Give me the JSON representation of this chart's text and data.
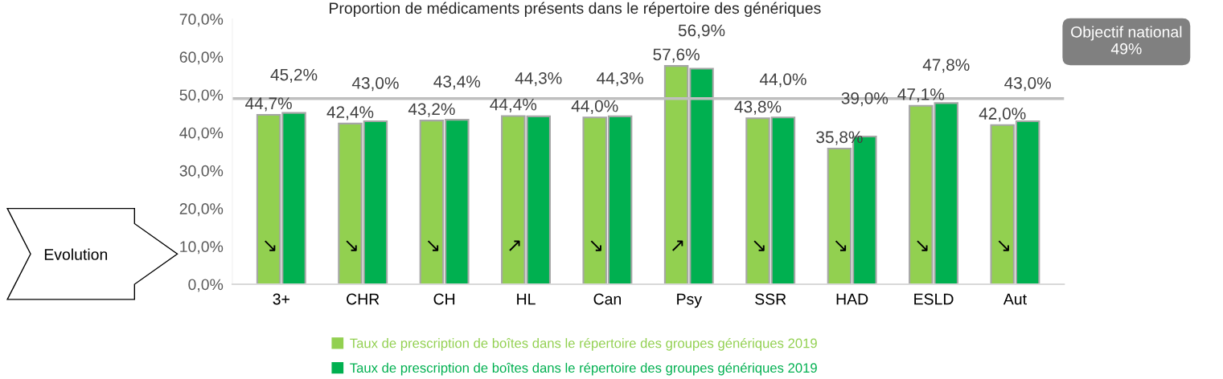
{
  "chart_data": {
    "type": "bar",
    "title": "Proportion de médicaments présents dans le répertoire des génériques",
    "categories": [
      "3+",
      "CHR",
      "CH",
      "HL",
      "Can",
      "Psy",
      "SSR",
      "HAD",
      "ESLD",
      "Aut"
    ],
    "series": [
      {
        "name": "Taux de prescription de boîtes dans le répertoire des groupes génériques 2019",
        "color": "#92d050",
        "values": [
          44.7,
          42.4,
          43.2,
          44.4,
          44.0,
          57.6,
          43.8,
          35.8,
          47.1,
          42.0
        ],
        "value_labels": [
          "44,7%",
          "42,4%",
          "43,2%",
          "44,4%",
          "44,0%",
          "57,6%",
          "43,8%",
          "35,8%",
          "47,1%",
          "42,0%"
        ]
      },
      {
        "name": "Taux de prescription de boîtes dans le répertoire des groupes génériques 2019",
        "color": "#00b050",
        "values": [
          45.2,
          43.0,
          43.4,
          44.3,
          44.3,
          56.9,
          44.0,
          39.0,
          47.8,
          43.0
        ],
        "value_labels": [
          "45,2%",
          "43,0%",
          "43,4%",
          "44,3%",
          "44,3%",
          "56,9%",
          "44,0%",
          "39,0%",
          "47,8%",
          "43,0%"
        ]
      }
    ],
    "ylim": [
      0,
      70
    ],
    "yticks": [
      {
        "value": 0,
        "label": "0,0%"
      },
      {
        "value": 10,
        "label": "10,0%"
      },
      {
        "value": 20,
        "label": "20,0%"
      },
      {
        "value": 30,
        "label": "30,0%"
      },
      {
        "value": 40,
        "label": "40,0%"
      },
      {
        "value": 50,
        "label": "50,0%"
      },
      {
        "value": 60,
        "label": "60,0%"
      },
      {
        "value": 70,
        "label": "70,0%"
      }
    ],
    "ref_lines": [
      {
        "axis": "y",
        "value": 49,
        "label": "Objectif national\n49%",
        "color": "#bfbfbf"
      }
    ],
    "annotations": [
      "Evolution",
      {
        "text": "↘",
        "x": "3+",
        "y": 10
      },
      {
        "text": "↘",
        "x": "CHR",
        "y": 10
      },
      {
        "text": "↘",
        "x": "CH",
        "y": 10
      },
      {
        "text": "↗",
        "x": "HL",
        "y": 10
      },
      {
        "text": "↘",
        "x": "Can",
        "y": 10
      },
      {
        "text": "↗",
        "x": "Psy",
        "y": 10
      },
      {
        "text": "↘",
        "x": "SSR",
        "y": 10
      },
      {
        "text": "↘",
        "x": "HAD",
        "y": 10
      },
      {
        "text": "↘",
        "x": "ESLD",
        "y": 10
      },
      {
        "text": "↘",
        "x": "Aut",
        "y": 10
      }
    ],
    "legend": "bottom",
    "grid": false
  }
}
